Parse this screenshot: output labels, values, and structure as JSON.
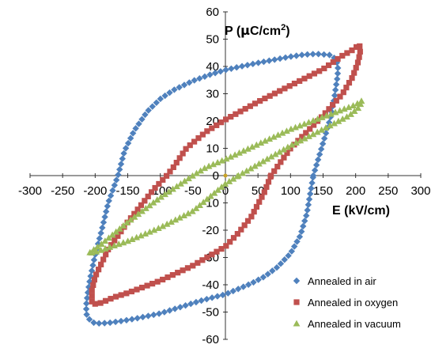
{
  "chart_data": {
    "type": "scatter",
    "xlabel": "E  (kV/cm)",
    "ylabel_main": "P (",
    "ylabel_mu": "μ",
    "ylabel_unit": "C/cm",
    "ylabel_sup": "2",
    "ylabel_close": ")",
    "xlim": [
      -300,
      300
    ],
    "ylim": [
      -60,
      60
    ],
    "x_ticks": [
      -300,
      -250,
      -200,
      -150,
      -100,
      -50,
      0,
      50,
      100,
      150,
      200,
      250,
      300
    ],
    "y_ticks": [
      -60,
      -50,
      -40,
      -30,
      -20,
      -10,
      0,
      10,
      20,
      30,
      40,
      50,
      60
    ],
    "grid": false,
    "legend_position": "bottom-right",
    "series": [
      {
        "name": "Annealed in air",
        "marker": "diamond",
        "color": "#4f81bd",
        "vertices": [
          [
            135,
            0
          ],
          [
            150,
            12
          ],
          [
            160,
            20
          ],
          [
            167,
            28
          ],
          [
            170,
            33
          ],
          [
            172,
            36
          ],
          [
            173,
            39
          ],
          [
            172,
            41
          ],
          [
            168,
            43
          ],
          [
            160,
            44.2
          ],
          [
            140,
            44.6
          ],
          [
            120,
            44.3
          ],
          [
            100,
            43.6
          ],
          [
            80,
            42.7
          ],
          [
            50,
            41.3
          ],
          [
            20,
            39.8
          ],
          [
            0,
            38.7
          ],
          [
            -20,
            37.3
          ],
          [
            -50,
            34.7
          ],
          [
            -80,
            31.3
          ],
          [
            -100,
            28.1
          ],
          [
            -120,
            23.5
          ],
          [
            -140,
            16.5
          ],
          [
            -155,
            9
          ],
          [
            -165,
            0
          ],
          [
            -180,
            -10
          ],
          [
            -190,
            -20
          ],
          [
            -200,
            -29
          ],
          [
            -208,
            -38
          ],
          [
            -212,
            -44
          ],
          [
            -214,
            -48
          ],
          [
            -213,
            -51
          ],
          [
            -208,
            -53
          ],
          [
            -200,
            -54.2
          ],
          [
            -180,
            -54
          ],
          [
            -160,
            -53.3
          ],
          [
            -140,
            -52.5
          ],
          [
            -120,
            -51.5
          ],
          [
            -100,
            -50.5
          ],
          [
            -80,
            -49
          ],
          [
            -60,
            -47.5
          ],
          [
            -40,
            -46
          ],
          [
            -20,
            -44.7
          ],
          [
            0,
            -43.5
          ],
          [
            20,
            -41.5
          ],
          [
            40,
            -39.5
          ],
          [
            60,
            -37
          ],
          [
            80,
            -33.5
          ],
          [
            100,
            -28.5
          ],
          [
            115,
            -22
          ],
          [
            125,
            -14
          ],
          [
            130,
            -7
          ],
          [
            135,
            0
          ]
        ],
        "step": 7
      },
      {
        "name": "Annealed in oxygen",
        "marker": "square",
        "color": "#c0504d",
        "vertices": [
          [
            70,
            0
          ],
          [
            100,
            10
          ],
          [
            150,
            22
          ],
          [
            180,
            30
          ],
          [
            195,
            36
          ],
          [
            203,
            41
          ],
          [
            207,
            45
          ],
          [
            206,
            48
          ],
          [
            195,
            46
          ],
          [
            180,
            44
          ],
          [
            150,
            39
          ],
          [
            100,
            33
          ],
          [
            50,
            27
          ],
          [
            0,
            20.5
          ],
          [
            -30,
            16
          ],
          [
            -60,
            10
          ],
          [
            -80,
            3
          ],
          [
            -90,
            0
          ],
          [
            -110,
            -5
          ],
          [
            -150,
            -17
          ],
          [
            -180,
            -27
          ],
          [
            -200,
            -37
          ],
          [
            -205,
            -42
          ],
          [
            -205,
            -47
          ],
          [
            -195,
            -47
          ],
          [
            -170,
            -44.5
          ],
          [
            -150,
            -43
          ],
          [
            -100,
            -38.5
          ],
          [
            -50,
            -33
          ],
          [
            0,
            -26
          ],
          [
            20,
            -21
          ],
          [
            40,
            -15
          ],
          [
            60,
            -6
          ],
          [
            70,
            0
          ]
        ],
        "step": 7
      },
      {
        "name": "Annealed in vacuum",
        "marker": "triangle",
        "color": "#9bbb59",
        "vertices": [
          [
            20,
            0
          ],
          [
            100,
            11
          ],
          [
            150,
            17
          ],
          [
            190,
            22
          ],
          [
            205,
            25
          ],
          [
            210,
            27.5
          ],
          [
            200,
            26
          ],
          [
            150,
            21.5
          ],
          [
            100,
            17
          ],
          [
            50,
            11.5
          ],
          [
            0,
            6
          ],
          [
            -30,
            3
          ],
          [
            -50,
            0
          ],
          [
            -100,
            -8
          ],
          [
            -150,
            -17
          ],
          [
            -190,
            -25
          ],
          [
            -210,
            -28.5
          ],
          [
            -200,
            -28
          ],
          [
            -150,
            -24
          ],
          [
            -100,
            -19
          ],
          [
            -50,
            -13
          ],
          [
            0,
            -3
          ],
          [
            20,
            0
          ]
        ],
        "step": 6
      }
    ]
  }
}
